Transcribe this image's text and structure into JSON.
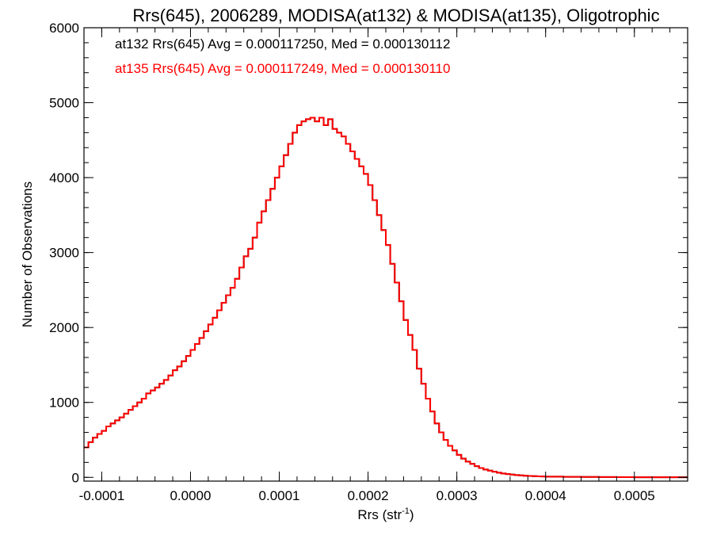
{
  "chart_data": {
    "type": "step",
    "title": "Rrs(645), 2006289, MODISA(at132) & MODISA(at135), Oligotrophic",
    "xlabel": "Rrs (str",
    "xlabel_sup": "-1",
    "xlabel_end": ")",
    "ylabel": "Number of Observations",
    "xlim": [
      -0.00012,
      0.00056
    ],
    "ylim": [
      -50,
      6000
    ],
    "x_ticks": [
      -0.0001,
      0.0,
      0.0001,
      0.0002,
      0.0003,
      0.0004,
      0.0005
    ],
    "x_tick_labels": [
      "-0.0001",
      "0.0000",
      "0.0001",
      "0.0002",
      "0.0003",
      "0.0004",
      "0.0005"
    ],
    "y_ticks": [
      0,
      1000,
      2000,
      3000,
      4000,
      5000,
      6000
    ],
    "y_tick_labels": [
      "0",
      "1000",
      "2000",
      "3000",
      "4000",
      "5000",
      "6000"
    ],
    "grid": false,
    "legend_position": "top-left",
    "series": [
      {
        "name": "at132 Rrs(645) Avg = 0.000117250, Med = 0.000130112",
        "color": "#000000",
        "x": [
          -0.00012,
          -0.000115,
          -0.00011,
          -0.000105,
          -0.0001,
          -9.5e-05,
          -9e-05,
          -8.5e-05,
          -8e-05,
          -7.5e-05,
          -7e-05,
          -6.5e-05,
          -6e-05,
          -5.5e-05,
          -5e-05,
          -4.5e-05,
          -4e-05,
          -3.5e-05,
          -3e-05,
          -2.5e-05,
          -2e-05,
          -1.5e-05,
          -1e-05,
          -5e-06,
          0.0,
          5e-06,
          1e-05,
          1.5e-05,
          2e-05,
          2.5e-05,
          3e-05,
          3.5e-05,
          4e-05,
          4.5e-05,
          5e-05,
          5.5e-05,
          6e-05,
          6.5e-05,
          7e-05,
          7.5e-05,
          8e-05,
          8.5e-05,
          9e-05,
          9.5e-05,
          0.0001,
          0.000105,
          0.00011,
          0.000115,
          0.00012,
          0.000125,
          0.00013,
          0.000135,
          0.00014,
          0.000145,
          0.00015,
          0.000155,
          0.00016,
          0.000165,
          0.00017,
          0.000175,
          0.00018,
          0.000185,
          0.00019,
          0.000195,
          0.0002,
          0.000205,
          0.00021,
          0.000215,
          0.00022,
          0.000225,
          0.00023,
          0.000235,
          0.00024,
          0.000245,
          0.00025,
          0.000255,
          0.00026,
          0.000265,
          0.00027,
          0.000275,
          0.00028,
          0.000285,
          0.00029,
          0.000295,
          0.0003,
          0.000305,
          0.00031,
          0.000315,
          0.00032,
          0.000325,
          0.00033,
          0.000335,
          0.00034,
          0.000345,
          0.00035,
          0.000355,
          0.00036,
          0.000365,
          0.00037,
          0.000375,
          0.00038,
          0.000385,
          0.00039,
          0.000395,
          0.0004,
          0.00042,
          0.00044,
          0.00046,
          0.00048,
          0.0005,
          0.00052,
          0.00054,
          0.00056
        ],
        "y": [
          400,
          470,
          530,
          580,
          620,
          680,
          720,
          760,
          800,
          850,
          900,
          950,
          1000,
          1050,
          1120,
          1160,
          1200,
          1250,
          1300,
          1360,
          1430,
          1480,
          1550,
          1620,
          1700,
          1780,
          1860,
          1950,
          2040,
          2130,
          2230,
          2330,
          2430,
          2530,
          2650,
          2800,
          2950,
          3050,
          3200,
          3400,
          3550,
          3700,
          3850,
          4000,
          4150,
          4300,
          4450,
          4600,
          4700,
          4750,
          4780,
          4800,
          4750,
          4800,
          4700,
          4780,
          4650,
          4600,
          4550,
          4450,
          4350,
          4250,
          4150,
          4050,
          3900,
          3700,
          3500,
          3300,
          3100,
          2850,
          2600,
          2350,
          2100,
          1900,
          1700,
          1450,
          1250,
          1050,
          880,
          720,
          600,
          500,
          420,
          360,
          300,
          250,
          210,
          180,
          150,
          125,
          105,
          90,
          75,
          62,
          52,
          44,
          37,
          31,
          26,
          22,
          19,
          16,
          14,
          12,
          10,
          7,
          5,
          4,
          3,
          2,
          2,
          1,
          1
        ]
      },
      {
        "name": "at135 Rrs(645) Avg = 0.000117249, Med = 0.000130110",
        "color": "#ff0000",
        "x": [
          -0.00012,
          -0.000115,
          -0.00011,
          -0.000105,
          -0.0001,
          -9.5e-05,
          -9e-05,
          -8.5e-05,
          -8e-05,
          -7.5e-05,
          -7e-05,
          -6.5e-05,
          -6e-05,
          -5.5e-05,
          -5e-05,
          -4.5e-05,
          -4e-05,
          -3.5e-05,
          -3e-05,
          -2.5e-05,
          -2e-05,
          -1.5e-05,
          -1e-05,
          -5e-06,
          0.0,
          5e-06,
          1e-05,
          1.5e-05,
          2e-05,
          2.5e-05,
          3e-05,
          3.5e-05,
          4e-05,
          4.5e-05,
          5e-05,
          5.5e-05,
          6e-05,
          6.5e-05,
          7e-05,
          7.5e-05,
          8e-05,
          8.5e-05,
          9e-05,
          9.5e-05,
          0.0001,
          0.000105,
          0.00011,
          0.000115,
          0.00012,
          0.000125,
          0.00013,
          0.000135,
          0.00014,
          0.000145,
          0.00015,
          0.000155,
          0.00016,
          0.000165,
          0.00017,
          0.000175,
          0.00018,
          0.000185,
          0.00019,
          0.000195,
          0.0002,
          0.000205,
          0.00021,
          0.000215,
          0.00022,
          0.000225,
          0.00023,
          0.000235,
          0.00024,
          0.000245,
          0.00025,
          0.000255,
          0.00026,
          0.000265,
          0.00027,
          0.000275,
          0.00028,
          0.000285,
          0.00029,
          0.000295,
          0.0003,
          0.000305,
          0.00031,
          0.000315,
          0.00032,
          0.000325,
          0.00033,
          0.000335,
          0.00034,
          0.000345,
          0.00035,
          0.000355,
          0.00036,
          0.000365,
          0.00037,
          0.000375,
          0.00038,
          0.000385,
          0.00039,
          0.000395,
          0.0004,
          0.00042,
          0.00044,
          0.00046,
          0.00048,
          0.0005,
          0.00052,
          0.00054,
          0.00056
        ],
        "y": [
          400,
          470,
          530,
          580,
          620,
          680,
          720,
          760,
          800,
          850,
          900,
          950,
          1000,
          1050,
          1120,
          1160,
          1200,
          1250,
          1300,
          1360,
          1430,
          1480,
          1550,
          1620,
          1700,
          1780,
          1860,
          1950,
          2040,
          2130,
          2230,
          2330,
          2430,
          2530,
          2650,
          2800,
          2950,
          3050,
          3200,
          3400,
          3550,
          3700,
          3850,
          4000,
          4150,
          4300,
          4450,
          4600,
          4700,
          4750,
          4780,
          4800,
          4750,
          4800,
          4700,
          4780,
          4650,
          4600,
          4550,
          4450,
          4350,
          4250,
          4150,
          4050,
          3900,
          3700,
          3500,
          3300,
          3100,
          2850,
          2600,
          2350,
          2100,
          1900,
          1700,
          1450,
          1250,
          1050,
          880,
          720,
          600,
          500,
          420,
          360,
          300,
          250,
          210,
          180,
          150,
          125,
          105,
          90,
          75,
          62,
          52,
          44,
          37,
          31,
          26,
          22,
          19,
          16,
          14,
          12,
          10,
          7,
          5,
          4,
          3,
          2,
          2,
          1,
          1
        ]
      }
    ]
  }
}
